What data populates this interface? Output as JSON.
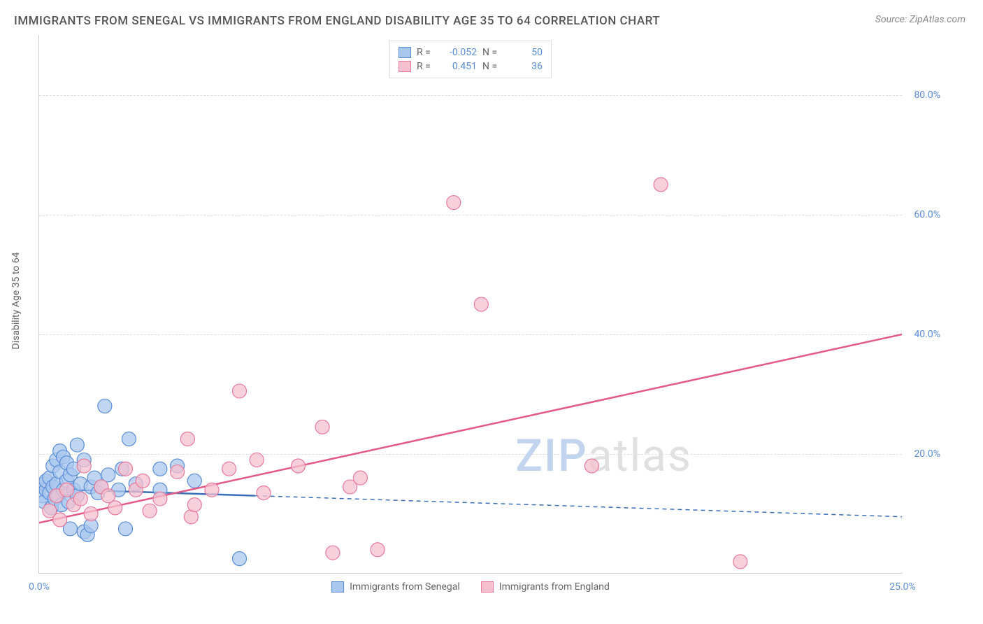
{
  "title": "IMMIGRANTS FROM SENEGAL VS IMMIGRANTS FROM ENGLAND DISABILITY AGE 35 TO 64 CORRELATION CHART",
  "source": "Source: ZipAtlas.com",
  "y_axis_label": "Disability Age 35 to 64",
  "watermark_1": "ZIP",
  "watermark_2": "atlas",
  "chart": {
    "type": "scatter",
    "background_color": "#ffffff",
    "grid_color": "#dddddd",
    "xlim": [
      0,
      25
    ],
    "ylim": [
      0,
      90
    ],
    "x_ticks": [
      {
        "pos": 0,
        "label": "0.0%"
      },
      {
        "pos": 25,
        "label": "25.0%"
      }
    ],
    "y_ticks": [
      {
        "pos": 20,
        "label": "20.0%"
      },
      {
        "pos": 40,
        "label": "40.0%"
      },
      {
        "pos": 60,
        "label": "60.0%"
      },
      {
        "pos": 80,
        "label": "80.0%"
      }
    ],
    "legend_top": [
      {
        "swatch_fill": "#a9c7ed",
        "swatch_stroke": "#5b8dd6",
        "r_value": "-0.052",
        "n_value": "50"
      },
      {
        "swatch_fill": "#f6c0cf",
        "swatch_stroke": "#e77a9a",
        "r_value": "0.451",
        "n_value": "36"
      }
    ],
    "legend_bottom": [
      {
        "swatch_fill": "#a9c7ed",
        "swatch_stroke": "#5b8dd6",
        "label": "Immigrants from Senegal"
      },
      {
        "swatch_fill": "#f6c0cf",
        "swatch_stroke": "#e77a9a",
        "label": "Immigrants from England"
      }
    ],
    "series": [
      {
        "name": "senegal",
        "marker_fill": "#a9c7ed",
        "marker_stroke": "#5b8dd6",
        "marker_opacity": 0.75,
        "marker_radius": 10,
        "line_color": "#3a6fb7",
        "line_style": "dashed",
        "line_solid_until": 0.25,
        "line_y_start": 14.2,
        "line_y_end": 9.5,
        "points": [
          [
            0.1,
            14.5
          ],
          [
            0.1,
            13.0
          ],
          [
            0.15,
            12.0
          ],
          [
            0.15,
            15.0
          ],
          [
            0.2,
            14.0
          ],
          [
            0.2,
            15.5
          ],
          [
            0.3,
            16.0
          ],
          [
            0.3,
            13.5
          ],
          [
            0.35,
            11.0
          ],
          [
            0.4,
            18.0
          ],
          [
            0.4,
            14.5
          ],
          [
            0.45,
            12.5
          ],
          [
            0.5,
            15.0
          ],
          [
            0.5,
            19.0
          ],
          [
            0.55,
            13.0
          ],
          [
            0.6,
            17.0
          ],
          [
            0.6,
            20.5
          ],
          [
            0.65,
            11.5
          ],
          [
            0.7,
            14.0
          ],
          [
            0.7,
            19.5
          ],
          [
            0.8,
            15.5
          ],
          [
            0.8,
            18.5
          ],
          [
            0.85,
            12.0
          ],
          [
            0.9,
            16.5
          ],
          [
            0.9,
            7.5
          ],
          [
            1.0,
            14.0
          ],
          [
            1.0,
            17.5
          ],
          [
            1.1,
            21.5
          ],
          [
            1.1,
            13.0
          ],
          [
            1.2,
            15.0
          ],
          [
            1.3,
            7.0
          ],
          [
            1.3,
            19.0
          ],
          [
            1.4,
            6.5
          ],
          [
            1.5,
            14.5
          ],
          [
            1.5,
            8.0
          ],
          [
            1.6,
            16.0
          ],
          [
            1.7,
            13.5
          ],
          [
            1.8,
            14.5
          ],
          [
            1.9,
            28.0
          ],
          [
            2.0,
            16.5
          ],
          [
            2.3,
            14.0
          ],
          [
            2.4,
            17.5
          ],
          [
            2.5,
            7.5
          ],
          [
            2.6,
            22.5
          ],
          [
            2.8,
            15.0
          ],
          [
            3.5,
            14.0
          ],
          [
            3.5,
            17.5
          ],
          [
            4.0,
            18.0
          ],
          [
            4.5,
            15.5
          ],
          [
            5.8,
            2.5
          ]
        ]
      },
      {
        "name": "england",
        "marker_fill": "#f6c0cf",
        "marker_stroke": "#e77a9a",
        "marker_opacity": 0.75,
        "marker_radius": 10,
        "line_color": "#e35a84",
        "line_style": "solid",
        "line_solid_until": 1.0,
        "line_y_start": 8.5,
        "line_y_end": 40.0,
        "points": [
          [
            0.3,
            10.5
          ],
          [
            0.5,
            13.0
          ],
          [
            0.6,
            9.0
          ],
          [
            0.8,
            14.0
          ],
          [
            1.0,
            11.5
          ],
          [
            1.2,
            12.5
          ],
          [
            1.3,
            18.0
          ],
          [
            1.5,
            10.0
          ],
          [
            1.8,
            14.5
          ],
          [
            2.0,
            13.0
          ],
          [
            2.2,
            11.0
          ],
          [
            2.5,
            17.5
          ],
          [
            2.8,
            14.0
          ],
          [
            3.0,
            15.5
          ],
          [
            3.2,
            10.5
          ],
          [
            3.5,
            12.5
          ],
          [
            4.0,
            17.0
          ],
          [
            4.3,
            22.5
          ],
          [
            4.4,
            9.5
          ],
          [
            4.5,
            11.5
          ],
          [
            5.0,
            14.0
          ],
          [
            5.5,
            17.5
          ],
          [
            5.8,
            30.5
          ],
          [
            6.3,
            19.0
          ],
          [
            6.5,
            13.5
          ],
          [
            7.5,
            18.0
          ],
          [
            8.2,
            24.5
          ],
          [
            8.5,
            3.5
          ],
          [
            9.0,
            14.5
          ],
          [
            9.3,
            16.0
          ],
          [
            9.8,
            4.0
          ],
          [
            12.0,
            62.0
          ],
          [
            12.8,
            45.0
          ],
          [
            16.0,
            18.0
          ],
          [
            18.0,
            65.0
          ],
          [
            20.3,
            2.0
          ]
        ]
      }
    ]
  }
}
